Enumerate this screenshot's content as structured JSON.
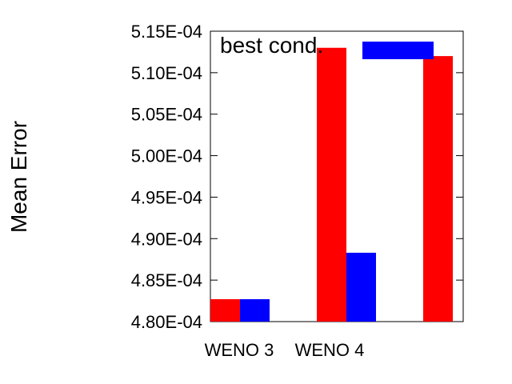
{
  "chart_data": {
    "type": "bar",
    "ylabel": "Mean Error",
    "categories": [
      "WENO 3",
      "WENO 4",
      ""
    ],
    "ylim": [
      0.00048,
      0.000515
    ],
    "yticks": [
      "4.80E-04",
      "4.85E-04",
      "4.90E-04",
      "4.95E-04",
      "5.00E-04",
      "5.05E-04",
      "5.10E-04",
      "5.15E-04"
    ],
    "legend_position": "top",
    "series": [
      {
        "name": "",
        "color": "#ff0000",
        "values": [
          0.0004827,
          0.000513,
          0.000512
        ]
      },
      {
        "name": "best cond.",
        "color": "#0000ff",
        "values": [
          0.0004827,
          0.0004883,
          null
        ]
      }
    ]
  }
}
